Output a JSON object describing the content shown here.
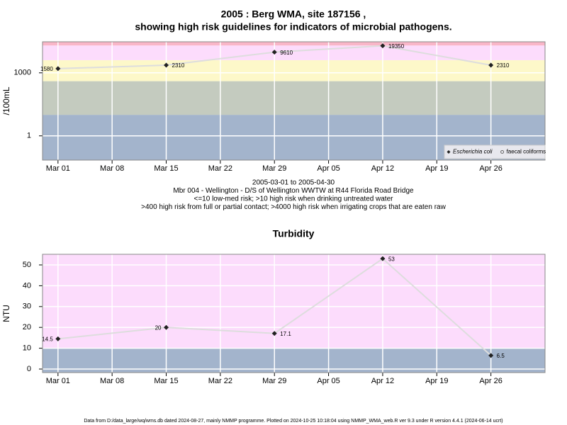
{
  "chart_data": [
    {
      "type": "line",
      "title": [
        "2005 : Berg WMA, site 187156 ,",
        "showing high risk guidelines for indicators of microbial pathogens."
      ],
      "ylabel": "/100mL",
      "log_scale": true,
      "x": [
        "2005-03-01",
        "2005-03-15",
        "2005-03-29",
        "2005-04-12",
        "2005-04-26"
      ],
      "series": [
        {
          "name": "Escherichia coli",
          "color": "#222222",
          "values": [
            1580,
            2310,
            9610,
            19350,
            2310
          ]
        },
        {
          "name": "faecal coliforms",
          "color": "#666666",
          "values": [
            null,
            null,
            null,
            null,
            null
          ]
        }
      ],
      "line_color": "#dddddd",
      "xlim": [
        "2005-02-27",
        "2005-05-03"
      ],
      "xticks": [
        {
          "value": "2005-03-01",
          "label": "Mar 01"
        },
        {
          "value": "2005-03-08",
          "label": "Mar 08"
        },
        {
          "value": "2005-03-15",
          "label": "Mar 15"
        },
        {
          "value": "2005-03-22",
          "label": "Mar 22"
        },
        {
          "value": "2005-03-29",
          "label": "Mar 29"
        },
        {
          "value": "2005-04-05",
          "label": "Apr 05"
        },
        {
          "value": "2005-04-12",
          "label": "Apr 12"
        },
        {
          "value": "2005-04-19",
          "label": "Apr 19"
        },
        {
          "value": "2005-04-26",
          "label": "Apr 26"
        }
      ],
      "ylim": [
        0.07,
        30000
      ],
      "yticks": [
        1,
        1000
      ],
      "bands": [
        {
          "from": 0.07,
          "to": 10,
          "color": "#a3b4cc"
        },
        {
          "from": 10,
          "to": 400,
          "color": "#c4cbbf"
        },
        {
          "from": 400,
          "to": 4000,
          "color": "#fdf8c9"
        },
        {
          "from": 4000,
          "to": 20000,
          "color": "#fcdcfc"
        },
        {
          "from": 20000,
          "to": 30000,
          "color": "#f9b6c8"
        }
      ],
      "grid": true,
      "legend": "bottom-right",
      "notes": [
        "2005-03-01 to 2005-04-30",
        "Mbr 004 - Wellington - D/S of Wellington WWTW at R44 Florida Road Bridge",
        "<=10 low-med risk; >10 high risk when drinking untreated water",
        ">400 high risk from full or partial contact; >4000 high risk when irrigating crops that are eaten raw"
      ]
    },
    {
      "type": "line",
      "title": [
        "Turbidity"
      ],
      "ylabel": "NTU",
      "log_scale": false,
      "x": [
        "2005-03-01",
        "2005-03-15",
        "2005-03-29",
        "2005-04-12",
        "2005-04-26"
      ],
      "series": [
        {
          "name": "Turbidity",
          "color": "#222222",
          "values": [
            14.5,
            20,
            17.1,
            53,
            6.5
          ]
        }
      ],
      "line_color": "#dddddd",
      "xlim": [
        "2005-02-27",
        "2005-05-03"
      ],
      "xticks": [
        {
          "value": "2005-03-01",
          "label": "Mar 01"
        },
        {
          "value": "2005-03-08",
          "label": "Mar 08"
        },
        {
          "value": "2005-03-15",
          "label": "Mar 15"
        },
        {
          "value": "2005-03-22",
          "label": "Mar 22"
        },
        {
          "value": "2005-03-29",
          "label": "Mar 29"
        },
        {
          "value": "2005-04-05",
          "label": "Apr 05"
        },
        {
          "value": "2005-04-12",
          "label": "Apr 12"
        },
        {
          "value": "2005-04-19",
          "label": "Apr 19"
        },
        {
          "value": "2005-04-26",
          "label": "Apr 26"
        }
      ],
      "ylim": [
        -1.7,
        55.1
      ],
      "yticks": [
        0,
        10,
        20,
        30,
        40,
        50
      ],
      "bands": [
        {
          "from": -1.7,
          "to": 10,
          "color": "#a3b4cc"
        },
        {
          "from": 10,
          "to": 55.1,
          "color": "#fcdcfc"
        }
      ],
      "grid": true
    }
  ],
  "footer": "Data from D:/data_large/wq/wms.db dated 2024-08-27, mainly NMMP programme. Plotted on 2024-10-25 10:18:04 using NMMP_WMA_web.R ver 9.3 under R version 4.4.1 (2024-06-14 ucrt)"
}
